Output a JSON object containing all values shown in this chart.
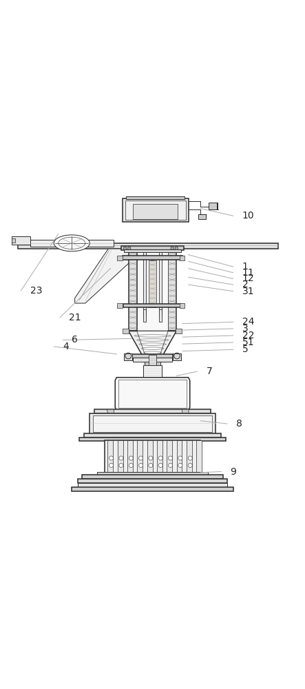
{
  "fig_width": 4.43,
  "fig_height": 10.0,
  "dpi": 100,
  "bg_color": "#ffffff",
  "lc": "#2a2a2a",
  "lc_light": "#888888",
  "fc_gray": "#e8e8e8",
  "fc_dark": "#cccccc",
  "fc_light": "#f5f5f5",
  "lw": 0.7,
  "lw2": 1.1,
  "label_fontsize": 10,
  "label_color": "#222222",
  "arrow_color": "#aaaaaa",
  "annotations": [
    {
      "text": "10",
      "xl": 0.8,
      "yl": 0.93,
      "xt": 0.66,
      "yt": 0.955
    },
    {
      "text": "1",
      "xl": 0.8,
      "yl": 0.76,
      "xt": 0.62,
      "yt": 0.8
    },
    {
      "text": "11",
      "xl": 0.8,
      "yl": 0.74,
      "xt": 0.62,
      "yt": 0.778
    },
    {
      "text": "12",
      "xl": 0.8,
      "yl": 0.72,
      "xt": 0.62,
      "yt": 0.754
    },
    {
      "text": "2",
      "xl": 0.8,
      "yl": 0.7,
      "xt": 0.62,
      "yt": 0.725
    },
    {
      "text": "31",
      "xl": 0.8,
      "yl": 0.678,
      "xt": 0.62,
      "yt": 0.7
    },
    {
      "text": "24",
      "xl": 0.8,
      "yl": 0.575,
      "xt": 0.6,
      "yt": 0.57
    },
    {
      "text": "3",
      "xl": 0.8,
      "yl": 0.553,
      "xt": 0.595,
      "yt": 0.548
    },
    {
      "text": "22",
      "xl": 0.8,
      "yl": 0.53,
      "xt": 0.6,
      "yt": 0.525
    },
    {
      "text": "51",
      "xl": 0.8,
      "yl": 0.507,
      "xt": 0.6,
      "yt": 0.502
    },
    {
      "text": "5",
      "xl": 0.8,
      "yl": 0.483,
      "xt": 0.6,
      "yt": 0.478
    },
    {
      "text": "6",
      "xl": 0.23,
      "yl": 0.515,
      "xt": 0.43,
      "yt": 0.52
    },
    {
      "text": "4",
      "xl": 0.2,
      "yl": 0.493,
      "xt": 0.38,
      "yt": 0.468
    },
    {
      "text": "7",
      "xl": 0.68,
      "yl": 0.41,
      "xt": 0.58,
      "yt": 0.395
    },
    {
      "text": "8",
      "xl": 0.78,
      "yl": 0.235,
      "xt": 0.66,
      "yt": 0.245
    },
    {
      "text": "9",
      "xl": 0.76,
      "yl": 0.075,
      "xt": 0.66,
      "yt": 0.072
    },
    {
      "text": "21",
      "xl": 0.22,
      "yl": 0.59,
      "xt": 0.36,
      "yt": 0.755
    },
    {
      "text": "23",
      "xl": 0.09,
      "yl": 0.68,
      "xt": 0.185,
      "yt": 0.87
    }
  ]
}
